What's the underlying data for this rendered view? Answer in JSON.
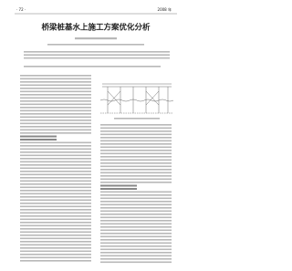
{
  "header": {
    "page": "· 72 ·",
    "year": "2008 年"
  },
  "title": "桥梁桩基水上施工方案优化分析"
}
